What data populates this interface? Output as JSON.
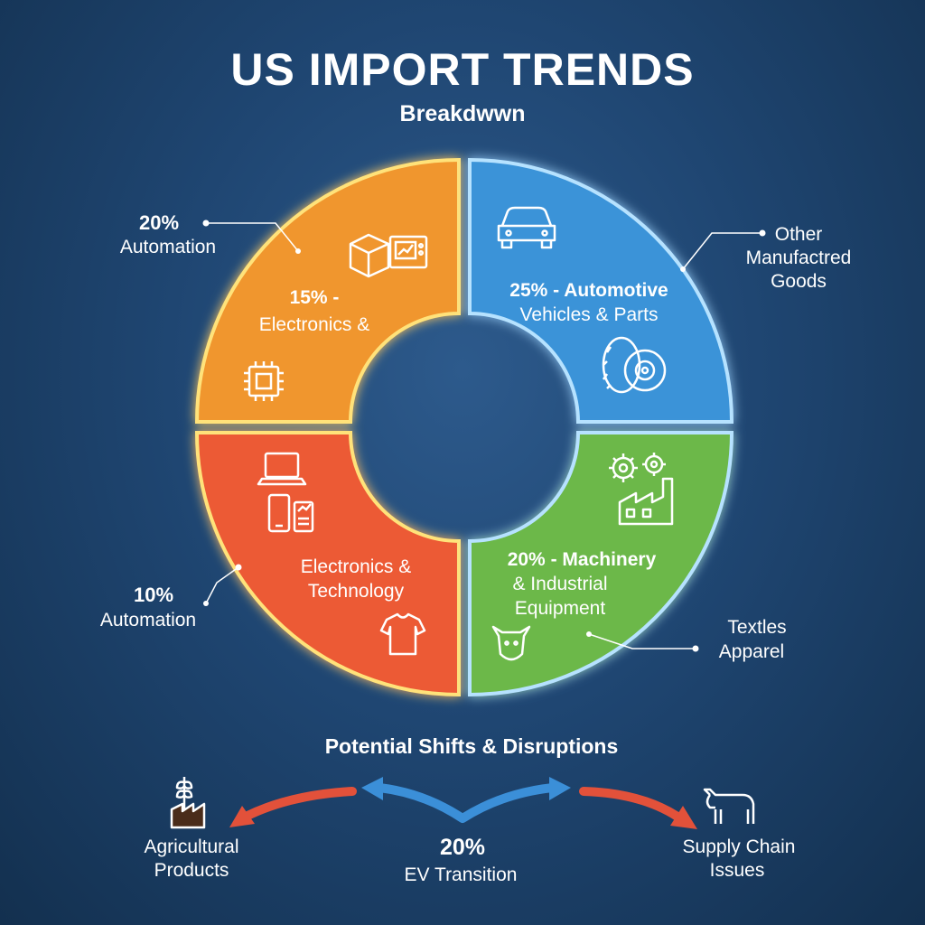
{
  "header": {
    "title": "US IMPORT TRENDS",
    "subtitle": "Breakdwwn"
  },
  "colors": {
    "orange": "#f0962e",
    "red": "#ec5a34",
    "blue": "#3a93d8",
    "green": "#6cb84a",
    "arrow_red": "#e2513a",
    "arrow_blue": "#3b8fd8"
  },
  "chart_data": {
    "type": "pie",
    "title": "US IMPORT TRENDS",
    "subtitle": "Breakdwwn",
    "donut": true,
    "slices": [
      {
        "key": "orange",
        "inner_label": [
          "15% -",
          "Electronics &"
        ],
        "icons": [
          "box-icon",
          "monitor-icon",
          "chip-icon"
        ],
        "color": "#f0962e"
      },
      {
        "key": "red",
        "inner_label": [
          "Electronics &",
          "Technology"
        ],
        "icons": [
          "laptop-icon",
          "phone-icon",
          "tshirt-icon"
        ],
        "color": "#ec5a34"
      },
      {
        "key": "blue",
        "inner_label": [
          "25% - Automotive",
          "Vehicles & Parts"
        ],
        "icons": [
          "car-icon",
          "tire-icon"
        ],
        "color": "#3a93d8"
      },
      {
        "key": "green",
        "inner_label": [
          "20% - Machinery",
          "& Industrial",
          "Equipment"
        ],
        "icons": [
          "gears-icon",
          "factory-icon",
          "cow-icon"
        ],
        "color": "#6cb84a"
      }
    ],
    "callouts": [
      {
        "pct": "20%",
        "text": [
          "Automation"
        ]
      },
      {
        "pct": "10%",
        "text": [
          "Automation"
        ]
      },
      {
        "pct": "",
        "text": [
          "Other",
          "Manufactred",
          "Goods"
        ]
      },
      {
        "pct": "",
        "text": [
          "Textles",
          "Apparel"
        ]
      }
    ]
  },
  "shifts": {
    "title": "Potential Shifts & Disruptions",
    "left": {
      "label": [
        "Agricultural",
        "Products"
      ],
      "icon": "wheat-factory-icon"
    },
    "center": {
      "pct": "20%",
      "label": "EV Transition"
    },
    "right": {
      "label": [
        "Supply Chain",
        "Issues"
      ],
      "icon": "cow-icon"
    }
  }
}
